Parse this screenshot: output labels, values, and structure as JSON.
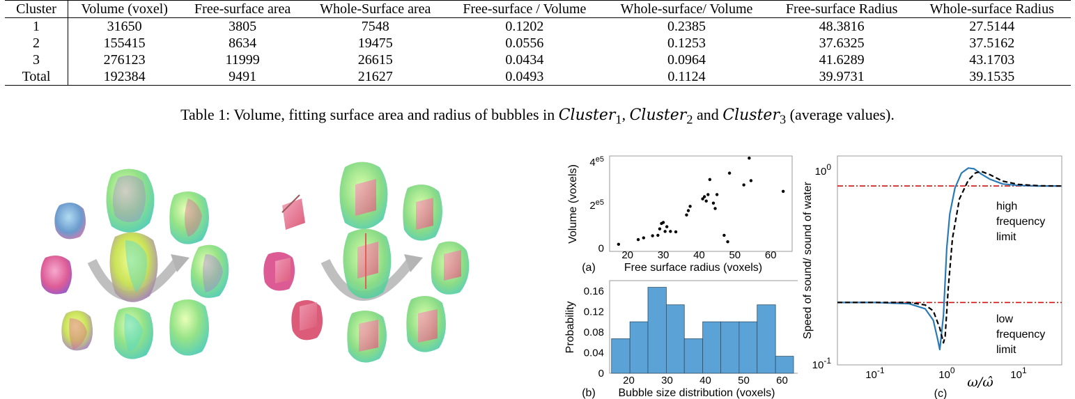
{
  "table": {
    "headers": [
      "Cluster",
      "Volume (voxel)",
      "Free-surface area",
      "Whole-Surface area",
      "Free-surface / Volume",
      "Whole-surface/ Volume",
      "Free-surface Radius",
      "Whole-surface Radius"
    ],
    "rows": [
      [
        "1",
        "31650",
        "3805",
        "7548",
        "0.1202",
        "0.2385",
        "48.3816",
        "27.5144"
      ],
      [
        "2",
        "155415",
        "8634",
        "19475",
        "0.0556",
        "0.1253",
        "37.6325",
        "37.5162"
      ],
      [
        "3",
        "276123",
        "11999",
        "26615",
        "0.0434",
        "0.0964",
        "41.6289",
        "43.1703"
      ],
      [
        "Total",
        "192384",
        "9491",
        "21627",
        "0.0493",
        "0.1124",
        "39.9731",
        "39.1535"
      ]
    ]
  },
  "caption": {
    "prefix": "Table 1: Volume, fitting surface area and radius of bubbles in ",
    "c1": "Cluster",
    "sub1": "1",
    "sep": ", ",
    "c2": "Cluster",
    "sub2": "2",
    "and": " and ",
    "c3": "Cluster",
    "sub3": "3",
    "suffix": " (average values)."
  },
  "colors": {
    "bars": "#5ba3d6",
    "curve_solid": "#2a7ab5",
    "limit_lines": "#cc1111",
    "bubble_green": "#8be07a",
    "bubble_cyan": "#46d7c8",
    "bubble_magenta": "#d94a8a",
    "bubble_purple": "#9b6ad6",
    "bubble_yellow": "#d8e84a",
    "arrow_gray": "#b4b4b4"
  },
  "chart_data": [
    {
      "type": "scatter",
      "panel_label": "(a)",
      "xlabel": "Free surface radius (voxels)",
      "ylabel": "Volume (voxels)",
      "xlim": [
        15,
        66
      ],
      "ylim": [
        -15000,
        430000
      ],
      "xticks": [
        20,
        30,
        40,
        50,
        60
      ],
      "xtick_labels": [
        "20",
        "30",
        "40",
        "50",
        "60"
      ],
      "yticks": [
        0,
        200000,
        400000
      ],
      "ytick_labels": [
        "0",
        "2e5",
        "4e5"
      ],
      "points": [
        [
          17.5,
          18000
        ],
        [
          23,
          40000
        ],
        [
          24.5,
          48000
        ],
        [
          27,
          58000
        ],
        [
          28.5,
          60000
        ],
        [
          29,
          90000
        ],
        [
          29.5,
          115000
        ],
        [
          30,
          120000
        ],
        [
          31,
          100000
        ],
        [
          30.5,
          78000
        ],
        [
          32,
          78000
        ],
        [
          33.5,
          76000
        ],
        [
          36.5,
          155000
        ],
        [
          37,
          175000
        ],
        [
          37.5,
          195000
        ],
        [
          41,
          230000
        ],
        [
          41.5,
          240000
        ],
        [
          42,
          220000
        ],
        [
          43,
          320000
        ],
        [
          42.5,
          250000
        ],
        [
          44,
          210000
        ],
        [
          44.5,
          185000
        ],
        [
          45,
          250000
        ],
        [
          47,
          60000
        ],
        [
          48,
          30000
        ],
        [
          48.5,
          350000
        ],
        [
          52.5,
          295000
        ],
        [
          54,
          420000
        ],
        [
          54.5,
          315000
        ],
        [
          63.5,
          265000
        ]
      ]
    },
    {
      "type": "bar",
      "panel_label": "(b)",
      "xlabel": "Bubble size distribution (voxels)",
      "ylabel": "Probability",
      "xlim": [
        15,
        65
      ],
      "ylim": [
        0,
        0.18
      ],
      "xticks": [
        20,
        30,
        40,
        50,
        60
      ],
      "xtick_labels": [
        "20",
        "30",
        "40",
        "50",
        "60"
      ],
      "yticks": [
        0,
        0.04,
        0.08,
        0.12,
        0.16
      ],
      "ytick_labels": [
        "0",
        "0.04",
        "0.08",
        "0.12",
        "0.16"
      ],
      "bin_edges": [
        15.5,
        20.3,
        25.0,
        29.8,
        34.5,
        39.3,
        44.0,
        48.8,
        53.5,
        58.3,
        63.0
      ],
      "values": [
        0.067,
        0.1,
        0.167,
        0.133,
        0.067,
        0.1,
        0.1,
        0.1,
        0.133,
        0.033
      ]
    },
    {
      "type": "line",
      "panel_label": "(c)",
      "xlabel": "ω/ω̂",
      "ylabel": "Speed of sound/ sound of water",
      "xscale": "log",
      "yscale": "log",
      "xlim": [
        0.03,
        40
      ],
      "ylim": [
        0.1,
        1.2
      ],
      "xticks": [
        0.1,
        1,
        10
      ],
      "xtick_labels": [
        "10-1",
        "10^0",
        "10^1"
      ],
      "yticks": [
        0.1,
        1
      ],
      "ytick_labels": [
        "10^-1",
        "10^0"
      ],
      "high_limit": 0.84,
      "low_limit": 0.21,
      "annotations": [
        "high frequency limit",
        "low frequency limit"
      ],
      "series": [
        {
          "style": "solid",
          "x": [
            0.03,
            0.1,
            0.3,
            0.5,
            0.65,
            0.75,
            0.8,
            0.9,
            1.0,
            1.1,
            1.3,
            1.6,
            2.0,
            2.4,
            3.0,
            4.0,
            6.0,
            10,
            20,
            40
          ],
          "y": [
            0.21,
            0.21,
            0.207,
            0.195,
            0.17,
            0.135,
            0.12,
            0.18,
            0.4,
            0.6,
            0.82,
            0.98,
            1.04,
            1.03,
            0.97,
            0.91,
            0.86,
            0.845,
            0.84,
            0.84
          ]
        },
        {
          "style": "dashed",
          "x": [
            0.03,
            0.1,
            0.3,
            0.5,
            0.65,
            0.8,
            0.9,
            0.95,
            1.05,
            1.2,
            1.5,
            2.0,
            2.5,
            3.0,
            4.0,
            6.0,
            10,
            20,
            40
          ],
          "y": [
            0.21,
            0.21,
            0.21,
            0.204,
            0.19,
            0.155,
            0.13,
            0.14,
            0.25,
            0.45,
            0.72,
            0.9,
            0.98,
            1.0,
            0.96,
            0.89,
            0.855,
            0.842,
            0.84
          ]
        }
      ]
    }
  ]
}
